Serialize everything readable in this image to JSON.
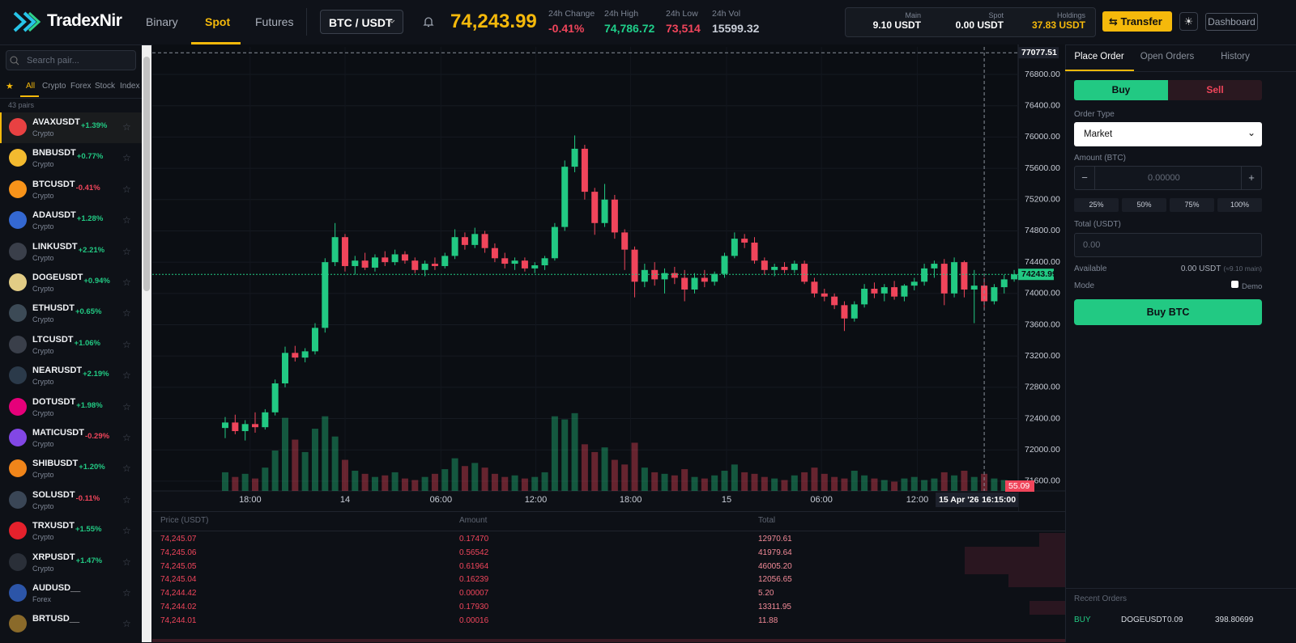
{
  "header": {
    "logo": "TradexNir",
    "tabs": [
      "Binary",
      "Spot",
      "Futures"
    ],
    "pair": "BTC / USDT",
    "price": "74,243.99",
    "stats": [
      {
        "label": "24h Change",
        "value": "-0.41%",
        "color": "#f0455b"
      },
      {
        "label": "24h High",
        "value": "74,786.72",
        "color": "#1fcf8a"
      },
      {
        "label": "24h Low",
        "value": "73,514",
        "color": "#f0455b"
      },
      {
        "label": "24h Vol",
        "value": "15599.32",
        "color": "#c9ced8"
      }
    ],
    "wallets": [
      {
        "label": "Main",
        "value": "9.10 USDT",
        "color": "#ffffff"
      },
      {
        "label": "Spot",
        "value": "0.00 USDT",
        "color": "#ffffff"
      },
      {
        "label": "Holdings",
        "value": "37.83 USDT",
        "color": "#f5b90b"
      }
    ],
    "transfer": "Transfer",
    "dashboard": "Dashboard"
  },
  "sidebar": {
    "search": "Search pair...",
    "filters": [
      "All",
      "Crypto",
      "Forex",
      "Stock",
      "Index"
    ],
    "count": "43 pairs",
    "pairs": [
      {
        "symbol": "AVAXUSDT",
        "change": "+1.39%",
        "category": "Crypto",
        "color": "#e84142"
      },
      {
        "symbol": "BNBUSDT",
        "change": "+0.77%",
        "category": "Crypto",
        "color": "#f3ba2f"
      },
      {
        "symbol": "BTCUSDT",
        "change": "-0.41%",
        "category": "Crypto",
        "color": "#f7931a"
      },
      {
        "symbol": "ADAUSDT",
        "change": "+1.28%",
        "category": "Crypto",
        "color": "#3468d1"
      },
      {
        "symbol": "LINKUSDT",
        "change": "+2.21%",
        "category": "Crypto",
        "color": "#3a3f4a"
      },
      {
        "symbol": "DOGEUSDT",
        "change": "+0.94%",
        "category": "Crypto",
        "color": "#e2cc85"
      },
      {
        "symbol": "ETHUSDT",
        "change": "+0.65%",
        "category": "Crypto",
        "color": "#3c4a56"
      },
      {
        "symbol": "LTCUSDT",
        "change": "+1.06%",
        "category": "Crypto",
        "color": "#3a3f4a"
      },
      {
        "symbol": "NEARUSDT",
        "change": "+2.19%",
        "category": "Crypto",
        "color": "#2b3a4a"
      },
      {
        "symbol": "DOTUSDT",
        "change": "+1.98%",
        "category": "Crypto",
        "color": "#e6007a"
      },
      {
        "symbol": "MATICUSDT",
        "change": "-0.29%",
        "category": "Crypto",
        "color": "#8247e5"
      },
      {
        "symbol": "SHIBUSDT",
        "change": "+1.20%",
        "category": "Crypto",
        "color": "#f0851a"
      },
      {
        "symbol": "SOLUSDT",
        "change": "-0.11%",
        "category": "Crypto",
        "color": "#3a4656"
      },
      {
        "symbol": "TRXUSDT",
        "change": "+1.55%",
        "category": "Crypto",
        "color": "#e5212c"
      },
      {
        "symbol": "XRPUSDT",
        "change": "+1.47%",
        "category": "Crypto",
        "color": "#2a2f38"
      },
      {
        "symbol": "AUDUSD__",
        "category": "Forex",
        "color": "#2c55a8"
      },
      {
        "symbol": "BRTUSD__",
        "color": "#8a6a2a"
      }
    ]
  },
  "chart_data": {
    "type": "candlestick",
    "up_color": "#22c983",
    "down_color": "#f0455b",
    "grid": true,
    "xlim": [
      -7.3,
      79.4
    ],
    "xticks": [
      {
        "value": 2.5,
        "label": "18:00"
      },
      {
        "value": 12,
        "label": "14"
      },
      {
        "value": 21.6,
        "label": "06:00"
      },
      {
        "value": 31.1,
        "label": "12:00"
      },
      {
        "value": 40.6,
        "label": "18:00"
      },
      {
        "value": 50.2,
        "label": "15"
      },
      {
        "value": 59.7,
        "label": "06:00"
      },
      {
        "value": 69.3,
        "label": "12:00"
      }
    ],
    "ylim": [
      71475,
      77152
    ],
    "yticks": [
      {
        "value": 76800,
        "label": "76800.00"
      },
      {
        "value": 76400,
        "label": "76400.00"
      },
      {
        "value": 76000,
        "label": "76000.00"
      },
      {
        "value": 75600,
        "label": "75600.00"
      },
      {
        "value": 75200,
        "label": "75200.00"
      },
      {
        "value": 74800,
        "label": "74800.00"
      },
      {
        "value": 74400,
        "label": "74400.00"
      },
      {
        "value": 74000,
        "label": "74000.00"
      },
      {
        "value": 73600,
        "label": "73600.00"
      },
      {
        "value": 73200,
        "label": "73200.00"
      },
      {
        "value": 72800,
        "label": "72800.00"
      },
      {
        "value": 72400,
        "label": "72400.00"
      },
      {
        "value": 72000,
        "label": "72000.00"
      },
      {
        "value": 71600,
        "label": "71600.00"
      }
    ],
    "volume_lim": [
      0,
      520
    ],
    "crosshair": {
      "x": 76,
      "price": 77077.51,
      "date": "15 Apr '26",
      "time": "16:15:00"
    },
    "candles": [
      [
        72280,
        72420,
        72150,
        72350
      ],
      [
        72350,
        72450,
        72200,
        72240
      ],
      [
        72240,
        72380,
        72120,
        72330
      ],
      [
        72330,
        72480,
        72220,
        72290
      ],
      [
        72290,
        72520,
        72260,
        72480
      ],
      [
        72480,
        72900,
        72440,
        72850
      ],
      [
        72850,
        73320,
        72800,
        73240
      ],
      [
        73240,
        73330,
        73130,
        73180
      ],
      [
        73180,
        73300,
        73120,
        73260
      ],
      [
        73260,
        73620,
        73220,
        73560
      ],
      [
        73560,
        74450,
        73500,
        74400
      ],
      [
        74400,
        74900,
        74350,
        74720
      ],
      [
        74720,
        74760,
        74280,
        74350
      ],
      [
        74350,
        74480,
        74240,
        74420
      ],
      [
        74420,
        74520,
        74300,
        74330
      ],
      [
        74330,
        74500,
        74280,
        74460
      ],
      [
        74460,
        74540,
        74350,
        74400
      ],
      [
        74400,
        74560,
        74360,
        74500
      ],
      [
        74500,
        74540,
        74380,
        74420
      ],
      [
        74420,
        74460,
        74260,
        74300
      ],
      [
        74300,
        74420,
        74220,
        74380
      ],
      [
        74380,
        74460,
        74300,
        74350
      ],
      [
        74350,
        74520,
        74320,
        74480
      ],
      [
        74480,
        74820,
        74440,
        74720
      ],
      [
        74720,
        74780,
        74560,
        74620
      ],
      [
        74620,
        74840,
        74580,
        74760
      ],
      [
        74760,
        74800,
        74520,
        74580
      ],
      [
        74580,
        74640,
        74400,
        74450
      ],
      [
        74450,
        74520,
        74320,
        74380
      ],
      [
        74380,
        74460,
        74300,
        74420
      ],
      [
        74420,
        74460,
        74280,
        74320
      ],
      [
        74320,
        74400,
        74260,
        74360
      ],
      [
        74360,
        74480,
        74300,
        74450
      ],
      [
        74450,
        74900,
        74420,
        74850
      ],
      [
        74850,
        75700,
        74800,
        75620
      ],
      [
        75620,
        76020,
        75550,
        75850
      ],
      [
        75850,
        75900,
        75200,
        75300
      ],
      [
        75300,
        75350,
        74750,
        74900
      ],
      [
        74900,
        75400,
        74850,
        75200
      ],
      [
        75200,
        75260,
        74700,
        74780
      ],
      [
        74780,
        74820,
        74300,
        74560
      ],
      [
        74560,
        74600,
        73950,
        74150
      ],
      [
        74150,
        74380,
        74080,
        74300
      ],
      [
        74300,
        74400,
        74100,
        74180
      ],
      [
        74180,
        74320,
        74000,
        74260
      ],
      [
        74260,
        74340,
        74120,
        74200
      ],
      [
        74200,
        74300,
        73900,
        74050
      ],
      [
        74050,
        74260,
        74000,
        74200
      ],
      [
        74200,
        74300,
        74080,
        74150
      ],
      [
        74150,
        74280,
        74100,
        74250
      ],
      [
        74250,
        74520,
        74200,
        74480
      ],
      [
        74480,
        74780,
        74450,
        74700
      ],
      [
        74700,
        74760,
        74580,
        74650
      ],
      [
        74650,
        74720,
        74380,
        74420
      ],
      [
        74420,
        74460,
        74240,
        74300
      ],
      [
        74300,
        74380,
        74220,
        74340
      ],
      [
        74340,
        74400,
        74260,
        74300
      ],
      [
        74300,
        74420,
        74260,
        74380
      ],
      [
        74380,
        74420,
        74120,
        74150
      ],
      [
        74150,
        74200,
        73950,
        74000
      ],
      [
        74000,
        74060,
        73900,
        73960
      ],
      [
        73960,
        74000,
        73800,
        73850
      ],
      [
        73850,
        73900,
        73520,
        73680
      ],
      [
        73680,
        73900,
        73640,
        73860
      ],
      [
        73860,
        74120,
        73820,
        74060
      ],
      [
        74060,
        74140,
        73940,
        74000
      ],
      [
        74000,
        74120,
        73900,
        74080
      ],
      [
        74080,
        74160,
        73920,
        73960
      ],
      [
        73960,
        74120,
        73900,
        74100
      ],
      [
        74100,
        74200,
        74040,
        74150
      ],
      [
        74150,
        74380,
        74100,
        74320
      ],
      [
        74320,
        74420,
        74200,
        74380
      ],
      [
        74380,
        74440,
        73850,
        74000
      ],
      [
        74000,
        74460,
        73950,
        74400
      ],
      [
        74400,
        74420,
        73950,
        74050
      ],
      [
        74050,
        74300,
        73620,
        74100
      ],
      [
        74100,
        74200,
        73800,
        73900
      ],
      [
        73900,
        74120,
        73860,
        74080
      ],
      [
        74080,
        74240,
        74000,
        74180
      ],
      [
        74180,
        74300,
        74150,
        74243.99
      ]
    ],
    "volumes": [
      120,
      90,
      110,
      80,
      150,
      260,
      470,
      330,
      250,
      400,
      480,
      350,
      200,
      130,
      110,
      90,
      100,
      120,
      80,
      70,
      90,
      110,
      140,
      210,
      160,
      180,
      150,
      110,
      90,
      100,
      80,
      90,
      120,
      480,
      460,
      500,
      300,
      250,
      280,
      200,
      170,
      310,
      150,
      120,
      110,
      100,
      140,
      90,
      80,
      100,
      130,
      170,
      120,
      110,
      90,
      80,
      70,
      100,
      120,
      150,
      110,
      90,
      80,
      130,
      100,
      80,
      70,
      60,
      80,
      90,
      70,
      80,
      120,
      100,
      130,
      90,
      110,
      80,
      70,
      55.09
    ]
  },
  "order_book": {
    "columns": [
      "Price (USDT)",
      "Amount",
      "Total"
    ],
    "rows": [
      [
        "74,245.07",
        "0.17470",
        "12970.61"
      ],
      [
        "74,245.06",
        "0.56542",
        "41979.64"
      ],
      [
        "74,245.05",
        "0.61964",
        "46005.20"
      ],
      [
        "74,245.04",
        "0.16239",
        "12056.65"
      ],
      [
        "74,244.42",
        "0.00007",
        "5.20"
      ],
      [
        "74,244.02",
        "0.17930",
        "13311.95"
      ],
      [
        "74,244.01",
        "0.00016",
        "11.88"
      ]
    ]
  },
  "order_form": {
    "tabs": [
      "Place Order",
      "Open Orders",
      "History"
    ],
    "sides": [
      "Buy",
      "Sell"
    ],
    "order_type_label": "Order Type",
    "order_type": "Market",
    "amount_label": "Amount (BTC)",
    "amount_placeholder": "0.00000",
    "minus": "−",
    "plus": "+",
    "percents": [
      "25%",
      "50%",
      "75%",
      "100%"
    ],
    "total_label": "Total (USDT)",
    "total_placeholder": "0.00",
    "available_label": "Available",
    "available": "0.00 USDT",
    "available_note": "(≈9.10 main)",
    "mode_label": "Mode",
    "mode": "Demo",
    "submit": "Buy BTC",
    "recent_title": "Recent Orders",
    "recent": [
      [
        "BUY",
        "DOGEUSDT",
        "0.09",
        "398.80699"
      ]
    ]
  }
}
